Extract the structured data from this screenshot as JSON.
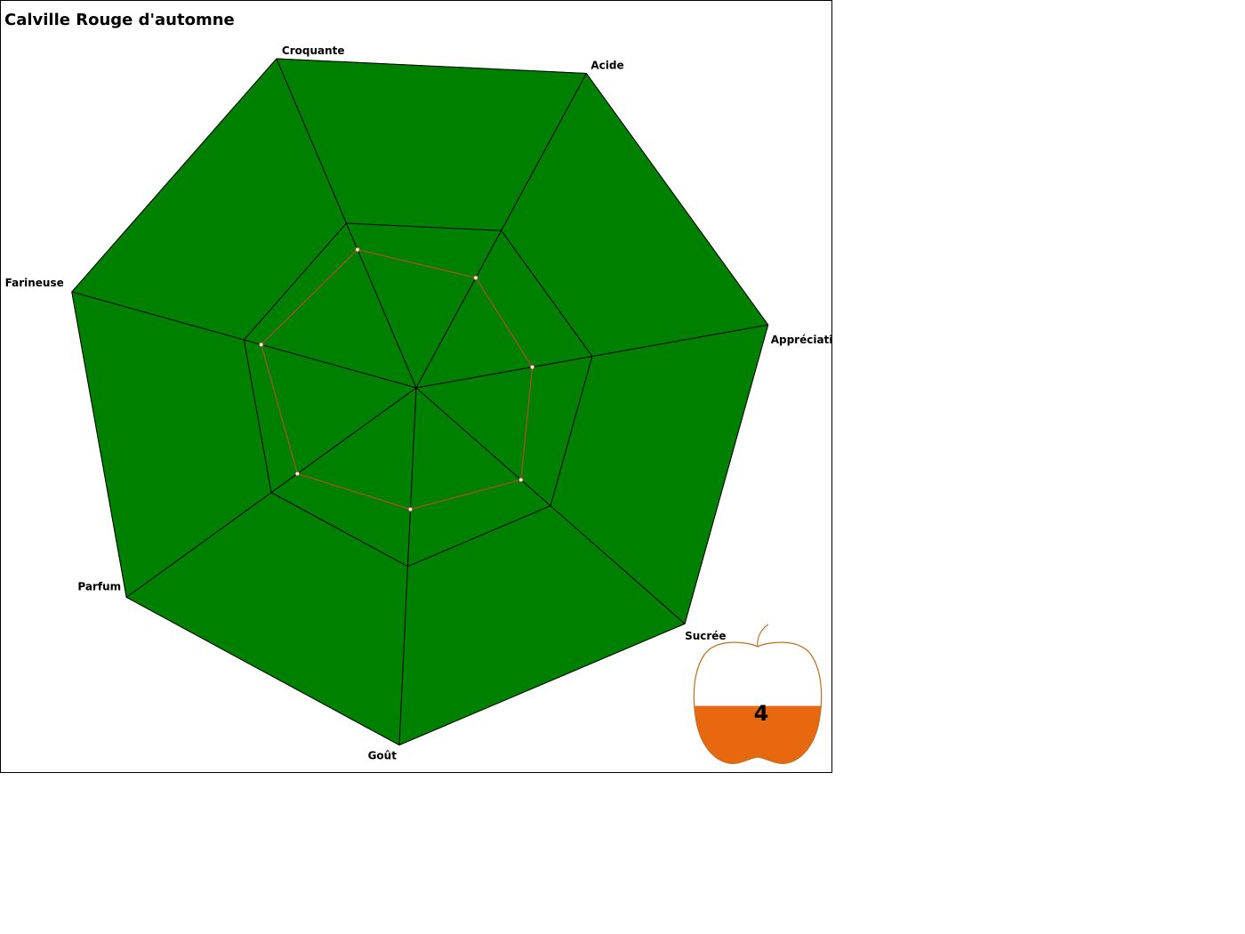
{
  "chart_data": {
    "type": "radar",
    "title": "Calville Rouge d'automne",
    "axes": [
      "Croquante",
      "Acide",
      "Appréciation",
      "Sucrée",
      "Goût",
      "Parfum",
      "Farineuse"
    ],
    "values": [
      0.42,
      0.35,
      0.33,
      0.39,
      0.34,
      0.41,
      0.45
    ],
    "range": [
      0,
      1
    ],
    "rings": [
      0.5,
      1.0
    ],
    "colors": {
      "fill": "#008000",
      "grid": "#000000",
      "series": "#a0522d",
      "apple_fill": "#e8680f",
      "apple_outline": "#c07020"
    },
    "rating": {
      "label": "Appréciation",
      "value": "4",
      "fill_fraction": 0.45
    }
  }
}
